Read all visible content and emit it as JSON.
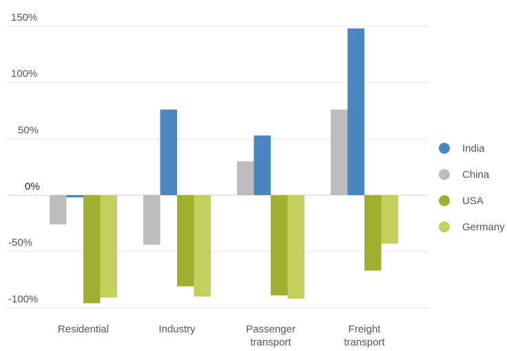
{
  "chart_data": {
    "type": "bar",
    "categories": [
      [
        "Residential"
      ],
      [
        "Industry"
      ],
      [
        "Passenger",
        "transport"
      ],
      [
        "Freight",
        "transport"
      ]
    ],
    "series": [
      {
        "name": "India",
        "color": "#4a86c0",
        "values": [
          -2,
          76,
          53,
          148
        ]
      },
      {
        "name": "China",
        "color": "#bdbdbd",
        "values": [
          -26,
          -44,
          30,
          76
        ]
      },
      {
        "name": "USA",
        "color": "#9fb02e",
        "values": [
          -96,
          -81,
          -89,
          -67
        ]
      },
      {
        "name": "Germany",
        "color": "#c3d05d",
        "values": [
          -91,
          -90,
          -92,
          -43
        ]
      }
    ],
    "bar_order": [
      "China",
      "India",
      "USA",
      "Germany"
    ],
    "ylim": [
      -100,
      150
    ],
    "yticks": [
      {
        "value": 150,
        "label": "150%"
      },
      {
        "value": 100,
        "label": "100%"
      },
      {
        "value": 50,
        "label": "50%"
      },
      {
        "value": 0,
        "label": "0%"
      },
      {
        "value": -50,
        "label": "-50%"
      },
      {
        "value": -100,
        "label": "-100%"
      }
    ],
    "grid": true,
    "legend_position": "right",
    "title": "",
    "xlabel": "",
    "ylabel": ""
  }
}
